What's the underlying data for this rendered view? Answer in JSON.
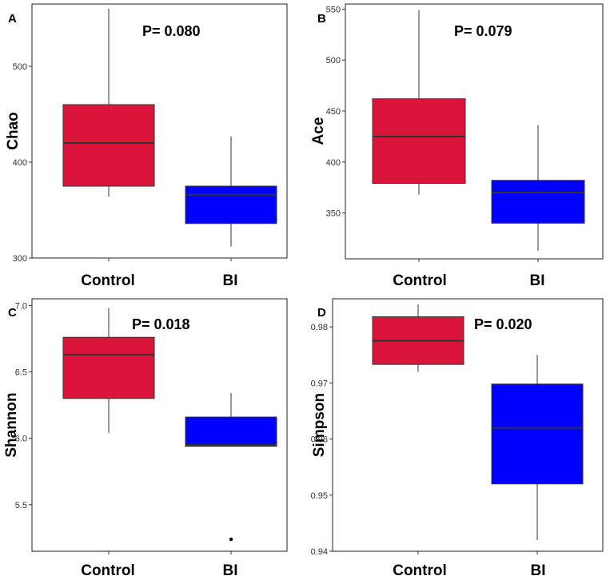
{
  "chart_data": [
    {
      "type": "box",
      "panel": "A",
      "ylabel": "Chao",
      "p_value": "P= 0.080",
      "categories": [
        "Control",
        "BI"
      ],
      "ylim": [
        300,
        565
      ],
      "yticks": [
        300,
        400,
        500
      ],
      "ytick_labels": [
        "300",
        "400",
        "500"
      ],
      "boxes": [
        {
          "name": "Control",
          "color": "#dc143c",
          "min": 364,
          "q1": 375,
          "median": 420,
          "q3": 460,
          "max": 560,
          "outliers": []
        },
        {
          "name": "BI",
          "color": "#0000ff",
          "min": 312,
          "q1": 336,
          "median": 366,
          "q3": 375,
          "max": 427,
          "outliers": []
        }
      ]
    },
    {
      "type": "box",
      "panel": "B",
      "ylabel": "Ace",
      "p_value": "P= 0.079",
      "categories": [
        "Control",
        "BI"
      ],
      "ylim": [
        305,
        555
      ],
      "yticks": [
        350,
        400,
        450,
        500,
        550
      ],
      "ytick_labels": [
        "350",
        "400",
        "450",
        "500",
        "550"
      ],
      "boxes": [
        {
          "name": "Control",
          "color": "#dc143c",
          "min": 368,
          "q1": 379,
          "median": 425,
          "q3": 462,
          "max": 549,
          "outliers": []
        },
        {
          "name": "BI",
          "color": "#0000ff",
          "min": 313,
          "q1": 340,
          "median": 370,
          "q3": 382,
          "max": 436,
          "outliers": []
        }
      ]
    },
    {
      "type": "box",
      "panel": "C",
      "ylabel": "Shannon",
      "p_value": "P= 0.018",
      "categories": [
        "Control",
        "BI"
      ],
      "ylim": [
        5.15,
        7.05
      ],
      "yticks": [
        5.5,
        6.0,
        6.5,
        7.0
      ],
      "ytick_labels": [
        "5.5",
        "6.0",
        "6.5",
        "7.0"
      ],
      "boxes": [
        {
          "name": "Control",
          "color": "#dc143c",
          "min": 6.04,
          "q1": 6.3,
          "median": 6.63,
          "q3": 6.76,
          "max": 6.98,
          "outliers": []
        },
        {
          "name": "BI",
          "color": "#0000ff",
          "min": 5.94,
          "q1": 5.94,
          "median": 5.95,
          "q3": 6.16,
          "max": 6.34,
          "outliers": [
            5.24
          ]
        }
      ]
    },
    {
      "type": "box",
      "panel": "D",
      "ylabel": "Simpson",
      "p_value": "P= 0.020",
      "categories": [
        "Control",
        "BI"
      ],
      "ylim": [
        0.94,
        0.985
      ],
      "yticks": [
        0.94,
        0.95,
        0.96,
        0.97,
        0.98
      ],
      "ytick_labels": [
        "0.94",
        "0.95",
        "0.96",
        "0.97",
        "0.98"
      ],
      "boxes": [
        {
          "name": "Control",
          "color": "#dc143c",
          "min": 0.972,
          "q1": 0.9733,
          "median": 0.9775,
          "q3": 0.9818,
          "max": 0.984,
          "outliers": []
        },
        {
          "name": "BI",
          "color": "#0000ff",
          "min": 0.942,
          "q1": 0.952,
          "median": 0.962,
          "q3": 0.9698,
          "max": 0.975,
          "outliers": []
        }
      ]
    }
  ]
}
